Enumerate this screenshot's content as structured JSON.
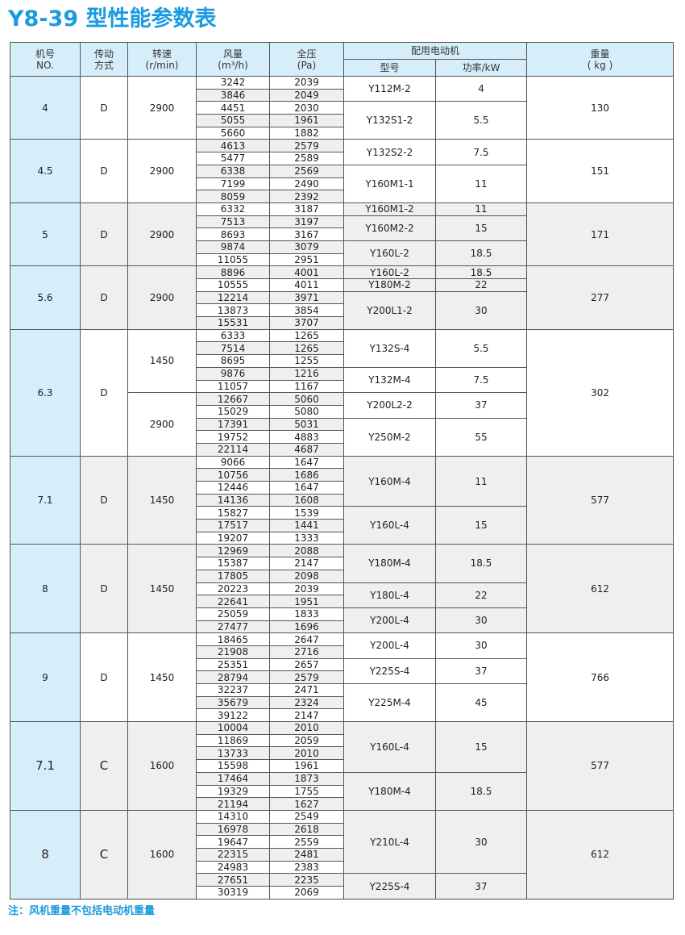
{
  "title": "Y8-39 型性能参数表",
  "headers": {
    "no": [
      "机号",
      "NO."
    ],
    "drive": [
      "传动",
      "方式"
    ],
    "speed": [
      "转速",
      "(r/min)"
    ],
    "flow": [
      "风量",
      "(m³/h)"
    ],
    "pressure": [
      "全压",
      "(Pa)"
    ],
    "motor": "配用电动机",
    "model": "型号",
    "power": "功率/kW",
    "weight": [
      "重量",
      "( kg )"
    ]
  },
  "colors": {
    "accent": "#1a9be0",
    "header_bg": "#d6eefa",
    "shade": "#efefef"
  },
  "groups": [
    {
      "no": "4",
      "drive": "D",
      "weight": "130",
      "shaded": false,
      "speeds": [
        {
          "value": "2900",
          "rows": 5
        }
      ],
      "rows": [
        [
          "3242",
          "2039"
        ],
        [
          "3846",
          "2049"
        ],
        [
          "4451",
          "2030"
        ],
        [
          "5055",
          "1961"
        ],
        [
          "5660",
          "1882"
        ]
      ],
      "motors": [
        {
          "model": "Y112M-2",
          "power": "4",
          "rows": 2
        },
        {
          "model": "Y132S1-2",
          "power": "5.5",
          "rows": 3
        }
      ]
    },
    {
      "no": "4.5",
      "drive": "D",
      "weight": "151",
      "shaded": false,
      "speeds": [
        {
          "value": "2900",
          "rows": 5
        }
      ],
      "rows": [
        [
          "4613",
          "2579"
        ],
        [
          "5477",
          "2589"
        ],
        [
          "6338",
          "2569"
        ],
        [
          "7199",
          "2490"
        ],
        [
          "8059",
          "2392"
        ]
      ],
      "motors": [
        {
          "model": "Y132S2-2",
          "power": "7.5",
          "rows": 2
        },
        {
          "model": "Y160M1-1",
          "power": "11",
          "rows": 3
        }
      ]
    },
    {
      "no": "5",
      "drive": "D",
      "weight": "171",
      "shaded": true,
      "speeds": [
        {
          "value": "2900",
          "rows": 5
        }
      ],
      "rows": [
        [
          "6332",
          "3187"
        ],
        [
          "7513",
          "3197"
        ],
        [
          "8693",
          "3167"
        ],
        [
          "9874",
          "3079"
        ],
        [
          "11055",
          "2951"
        ]
      ],
      "motors": [
        {
          "model": "Y160M1-2",
          "power": "11",
          "rows": 1
        },
        {
          "model": "Y160M2-2",
          "power": "15",
          "rows": 2
        },
        {
          "model": "Y160L-2",
          "power": "18.5",
          "rows": 2
        }
      ]
    },
    {
      "no": "5.6",
      "drive": "D",
      "weight": "277",
      "shaded": true,
      "speeds": [
        {
          "value": "2900",
          "rows": 5
        }
      ],
      "rows": [
        [
          "8896",
          "4001"
        ],
        [
          "10555",
          "4011"
        ],
        [
          "12214",
          "3971"
        ],
        [
          "13873",
          "3854"
        ],
        [
          "15531",
          "3707"
        ]
      ],
      "motors": [
        {
          "model": "Y160L-2",
          "power": "18.5",
          "rows": 1
        },
        {
          "model": "Y180M-2",
          "power": "22",
          "rows": 1
        },
        {
          "model": "Y200L1-2",
          "power": "30",
          "rows": 3
        }
      ]
    },
    {
      "no": "6.3",
      "drive": "D",
      "weight": "302",
      "shaded": false,
      "speeds": [
        {
          "value": "1450",
          "rows": 5
        },
        {
          "value": "2900",
          "rows": 5
        }
      ],
      "rows": [
        [
          "6333",
          "1265"
        ],
        [
          "7514",
          "1265"
        ],
        [
          "8695",
          "1255"
        ],
        [
          "9876",
          "1216"
        ],
        [
          "11057",
          "1167"
        ],
        [
          "12667",
          "5060"
        ],
        [
          "15029",
          "5080"
        ],
        [
          "17391",
          "5031"
        ],
        [
          "19752",
          "4883"
        ],
        [
          "22114",
          "4687"
        ]
      ],
      "motors": [
        {
          "model": "Y132S-4",
          "power": "5.5",
          "rows": 3
        },
        {
          "model": "Y132M-4",
          "power": "7.5",
          "rows": 2
        },
        {
          "model": "Y200L2-2",
          "power": "37",
          "rows": 2
        },
        {
          "model": "Y250M-2",
          "power": "55",
          "rows": 3
        }
      ]
    },
    {
      "no": "7.1",
      "drive": "D",
      "weight": "577",
      "shaded": true,
      "speeds": [
        {
          "value": "1450",
          "rows": 7
        }
      ],
      "rows": [
        [
          "9066",
          "1647"
        ],
        [
          "10756",
          "1686"
        ],
        [
          "12446",
          "1647"
        ],
        [
          "14136",
          "1608"
        ],
        [
          "15827",
          "1539"
        ],
        [
          "17517",
          "1441"
        ],
        [
          "19207",
          "1333"
        ]
      ],
      "motors": [
        {
          "model": "Y160M-4",
          "power": "11",
          "rows": 4
        },
        {
          "model": "Y160L-4",
          "power": "15",
          "rows": 3
        }
      ]
    },
    {
      "no": "8",
      "drive": "D",
      "weight": "612",
      "shaded": true,
      "speeds": [
        {
          "value": "1450",
          "rows": 7
        }
      ],
      "rows": [
        [
          "12969",
          "2088"
        ],
        [
          "15387",
          "2147"
        ],
        [
          "17805",
          "2098"
        ],
        [
          "20223",
          "2039"
        ],
        [
          "22641",
          "1951"
        ],
        [
          "25059",
          "1833"
        ],
        [
          "27477",
          "1696"
        ]
      ],
      "motors": [
        {
          "model": "Y180M-4",
          "power": "18.5",
          "rows": 3
        },
        {
          "model": "Y180L-4",
          "power": "22",
          "rows": 2
        },
        {
          "model": "Y200L-4",
          "power": "30",
          "rows": 2
        }
      ]
    },
    {
      "no": "9",
      "drive": "D",
      "weight": "766",
      "shaded": false,
      "speeds": [
        {
          "value": "1450",
          "rows": 7
        }
      ],
      "rows": [
        [
          "18465",
          "2647"
        ],
        [
          "21908",
          "2716"
        ],
        [
          "25351",
          "2657"
        ],
        [
          "28794",
          "2579"
        ],
        [
          "32237",
          "2471"
        ],
        [
          "35679",
          "2324"
        ],
        [
          "39122",
          "2147"
        ]
      ],
      "motors": [
        {
          "model": "Y200L-4",
          "power": "30",
          "rows": 2
        },
        {
          "model": "Y225S-4",
          "power": "37",
          "rows": 2
        },
        {
          "model": "Y225M-4",
          "power": "45",
          "rows": 3
        }
      ]
    },
    {
      "no": "7.1",
      "drive": "C",
      "weight": "577",
      "shaded": true,
      "large": true,
      "speeds": [
        {
          "value": "1600",
          "rows": 7
        }
      ],
      "rows": [
        [
          "10004",
          "2010"
        ],
        [
          "11869",
          "2059"
        ],
        [
          "13733",
          "2010"
        ],
        [
          "15598",
          "1961"
        ],
        [
          "17464",
          "1873"
        ],
        [
          "19329",
          "1755"
        ],
        [
          "21194",
          "1627"
        ]
      ],
      "motors": [
        {
          "model": "Y160L-4",
          "power": "15",
          "rows": 4
        },
        {
          "model": "Y180M-4",
          "power": "18.5",
          "rows": 3
        }
      ]
    },
    {
      "no": "8",
      "drive": "C",
      "weight": "612",
      "shaded": true,
      "large": true,
      "speeds": [
        {
          "value": "1600",
          "rows": 7
        }
      ],
      "rows": [
        [
          "14310",
          "2549"
        ],
        [
          "16978",
          "2618"
        ],
        [
          "19647",
          "2559"
        ],
        [
          "22315",
          "2481"
        ],
        [
          "24983",
          "2383"
        ],
        [
          "27651",
          "2235"
        ],
        [
          "30319",
          "2069"
        ]
      ],
      "motors": [
        {
          "model": "Y210L-4",
          "power": "30",
          "rows": 5
        },
        {
          "model": "Y225S-4",
          "power": "37",
          "rows": 2
        }
      ]
    }
  ],
  "note": "注：风机重量不包括电动机重量"
}
